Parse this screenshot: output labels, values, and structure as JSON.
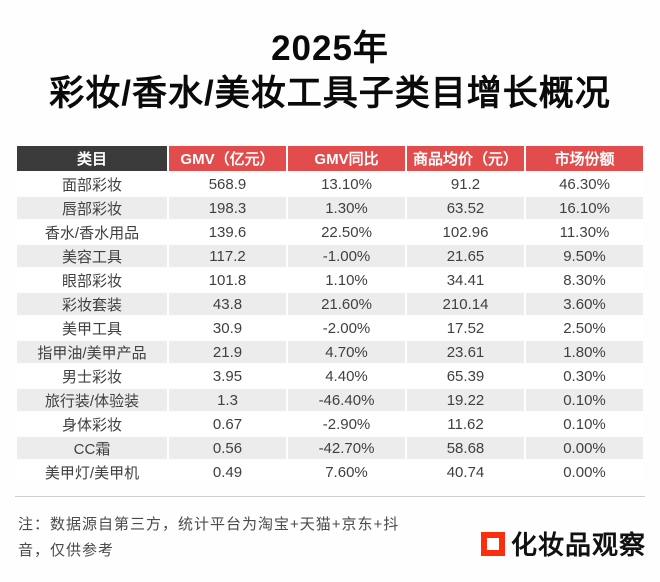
{
  "title": {
    "line1": "2025年",
    "line2": "彩妆/香水/美妆工具子类目增长概况"
  },
  "chart_data": {
    "type": "table",
    "title": "2025年 彩妆/香水/美妆工具子类目增长概况",
    "columns": [
      "类目",
      "GMV（亿元）",
      "GMV同比",
      "商品均价（元）",
      "市场份额"
    ],
    "rows": [
      [
        "面部彩妆",
        "568.9",
        "13.10%",
        "91.2",
        "46.30%"
      ],
      [
        "唇部彩妆",
        "198.3",
        "1.30%",
        "63.52",
        "16.10%"
      ],
      [
        "香水/香水用品",
        "139.6",
        "22.50%",
        "102.96",
        "11.30%"
      ],
      [
        "美容工具",
        "117.2",
        "-1.00%",
        "21.65",
        "9.50%"
      ],
      [
        "眼部彩妆",
        "101.8",
        "1.10%",
        "34.41",
        "8.30%"
      ],
      [
        "彩妆套装",
        "43.8",
        "21.60%",
        "210.14",
        "3.60%"
      ],
      [
        "美甲工具",
        "30.9",
        "-2.00%",
        "17.52",
        "2.50%"
      ],
      [
        "指甲油/美甲产品",
        "21.9",
        "4.70%",
        "23.61",
        "1.80%"
      ],
      [
        "男士彩妆",
        "3.95",
        "4.40%",
        "65.39",
        "0.30%"
      ],
      [
        "旅行装/体验装",
        "1.3",
        "-46.40%",
        "19.22",
        "0.10%"
      ],
      [
        "身体彩妆",
        "0.67",
        "-2.90%",
        "11.62",
        "0.10%"
      ],
      [
        "CC霜",
        "0.56",
        "-42.70%",
        "58.68",
        "0.00%"
      ],
      [
        "美甲灯/美甲机",
        "0.49",
        "7.60%",
        "40.74",
        "0.00%"
      ]
    ]
  },
  "note": {
    "line1": "注：数据源自第三方，统计平台为淘宝+天猫+京东+抖",
    "line2": "音，仅供参考"
  },
  "logo": {
    "square_icon": "red-square-outline",
    "text": "化妆品观察"
  },
  "colors": {
    "header_red": "#e24c4c",
    "header_dark": "#3b3b3b",
    "row_alt_gray": "#ececec",
    "divider_gray": "#cfcfcf",
    "logo_red": "#fb2e0e",
    "text_dark": "#404040"
  }
}
